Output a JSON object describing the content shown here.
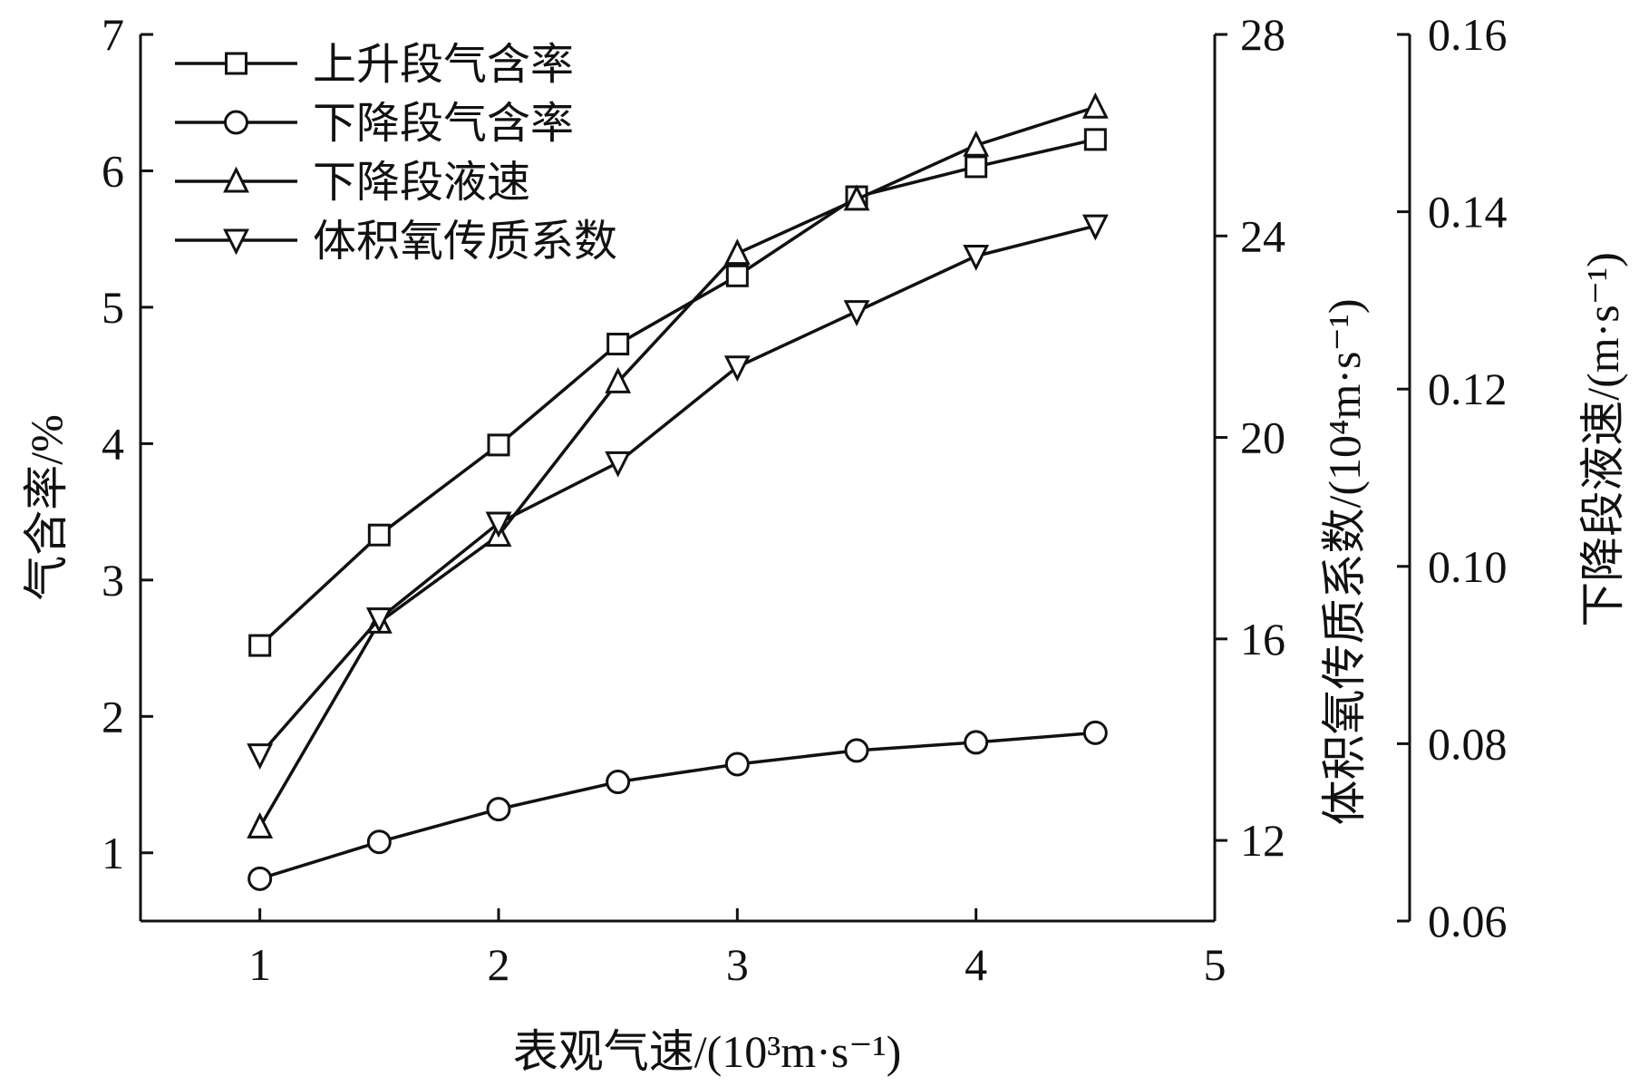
{
  "chart_data": {
    "type": "line",
    "xlabel": "表观气速/(10³m·s⁻¹)",
    "ylabel_left": "气含率/%",
    "ylabel_right1": "体积氧传质系数/(10⁴m·s⁻¹)",
    "ylabel_right2": "下降段液速/(m·s⁻¹)",
    "xlim": [
      0.5,
      5
    ],
    "x_ticks": [
      "1",
      "2",
      "3",
      "4",
      "5"
    ],
    "y_left_ticks": [
      "1",
      "2",
      "3",
      "4",
      "5",
      "6",
      "7"
    ],
    "y_right1_ticks": [
      "12",
      "16",
      "20",
      "24",
      "28"
    ],
    "y_right2_ticks": [
      "0.06",
      "0.08",
      "0.10",
      "0.12",
      "0.14",
      "0.16"
    ],
    "axes": {
      "left": {
        "min": 0.5,
        "max": 7
      },
      "right1": {
        "min": 10.4,
        "max": 28
      },
      "right2": {
        "min": 0.06,
        "max": 0.16
      }
    },
    "x": [
      1,
      1.5,
      2,
      2.5,
      3,
      3.5,
      4,
      4.5
    ],
    "legend_position": "top-left",
    "series": [
      {
        "name": "上升段气含率",
        "marker": "square",
        "axis": "left",
        "values": [
          2.52,
          3.33,
          3.99,
          4.73,
          5.23,
          5.81,
          6.03,
          6.23
        ]
      },
      {
        "name": "下降段气含率",
        "marker": "circle",
        "axis": "left",
        "values": [
          0.81,
          1.08,
          1.32,
          1.52,
          1.65,
          1.75,
          1.81,
          1.88
        ]
      },
      {
        "name": "下降段液速",
        "marker": "triangle-up",
        "axis": "right2",
        "values": [
          0.0706,
          0.0937,
          0.1035,
          0.1208,
          0.1353,
          0.1414,
          0.1475,
          0.1518
        ]
      },
      {
        "name": "体积氧传质系数",
        "marker": "triangle-down",
        "axis": "right1",
        "values": [
          13.7,
          16.4,
          18.3,
          19.5,
          21.4,
          22.5,
          23.6,
          24.2
        ]
      }
    ]
  }
}
